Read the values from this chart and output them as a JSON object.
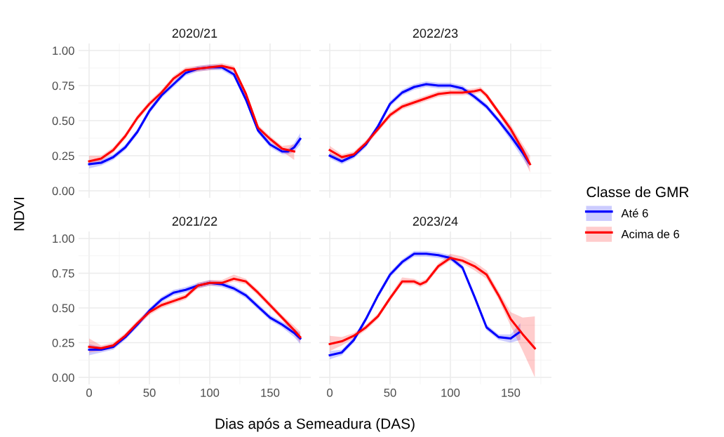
{
  "chart_data": [
    {
      "type": "line",
      "title": "2020/21",
      "ylabel": "NDVI",
      "legend": "right",
      "legend_title": "Classe de GMR",
      "xlim": [
        -8.75,
        183.75
      ],
      "ylim": [
        -0.05,
        1.05
      ],
      "xticks": [
        0,
        50,
        100,
        150
      ],
      "yticks": [
        {
          "value": 0,
          "label": "0.00"
        },
        {
          "value": 0.25,
          "label": "0.25"
        },
        {
          "value": 0.5,
          "label": "0.50"
        },
        {
          "value": 0.75,
          "label": "0.75"
        },
        {
          "value": 1,
          "label": "1.00"
        }
      ],
      "tick_labels": "y",
      "grid": true,
      "series": [
        {
          "name": "Até 6",
          "color": "#0000ff",
          "x": [
            0,
            10,
            20,
            30,
            40,
            50,
            60,
            70,
            80,
            90,
            100,
            110,
            120,
            130,
            140,
            150,
            160,
            165,
            170,
            175
          ],
          "values": [
            0.19,
            0.2,
            0.24,
            0.31,
            0.42,
            0.57,
            0.68,
            0.76,
            0.84,
            0.87,
            0.88,
            0.88,
            0.83,
            0.65,
            0.43,
            0.33,
            0.28,
            0.28,
            0.31,
            0.37
          ],
          "lower": [
            0.16,
            0.18,
            0.22,
            0.29,
            0.4,
            0.55,
            0.66,
            0.74,
            0.82,
            0.85,
            0.86,
            0.86,
            0.81,
            0.63,
            0.41,
            0.31,
            0.26,
            0.26,
            0.28,
            0.33
          ],
          "upper": [
            0.22,
            0.22,
            0.26,
            0.33,
            0.44,
            0.59,
            0.7,
            0.78,
            0.86,
            0.89,
            0.9,
            0.9,
            0.85,
            0.67,
            0.45,
            0.35,
            0.3,
            0.3,
            0.34,
            0.41
          ]
        },
        {
          "name": "Acima de 6",
          "color": "#ff0000",
          "x": [
            0,
            10,
            20,
            30,
            40,
            50,
            60,
            70,
            80,
            90,
            100,
            110,
            120,
            130,
            140,
            150,
            160,
            170
          ],
          "values": [
            0.21,
            0.23,
            0.29,
            0.39,
            0.52,
            0.62,
            0.7,
            0.8,
            0.86,
            0.87,
            0.88,
            0.89,
            0.87,
            0.69,
            0.45,
            0.37,
            0.3,
            0.28
          ],
          "lower": [
            0.18,
            0.21,
            0.27,
            0.37,
            0.5,
            0.6,
            0.68,
            0.78,
            0.84,
            0.85,
            0.86,
            0.87,
            0.85,
            0.67,
            0.43,
            0.35,
            0.28,
            0.22
          ],
          "upper": [
            0.25,
            0.25,
            0.31,
            0.41,
            0.54,
            0.64,
            0.72,
            0.82,
            0.88,
            0.89,
            0.9,
            0.91,
            0.89,
            0.71,
            0.47,
            0.39,
            0.32,
            0.33
          ]
        }
      ]
    },
    {
      "type": "line",
      "title": "2022/23",
      "xlim": [
        -8.75,
        183.75
      ],
      "ylim": [
        -0.05,
        1.05
      ],
      "xticks": [
        0,
        50,
        100,
        150
      ],
      "yticks": [
        0,
        0.25,
        0.5,
        0.75,
        1
      ],
      "tick_labels": false,
      "grid": true,
      "series": [
        {
          "color": "#0000ff",
          "x": [
            0,
            10,
            20,
            30,
            40,
            50,
            60,
            70,
            80,
            90,
            100,
            110,
            120,
            130,
            140,
            150,
            160,
            165
          ],
          "values": [
            0.25,
            0.21,
            0.25,
            0.33,
            0.46,
            0.62,
            0.7,
            0.74,
            0.76,
            0.75,
            0.75,
            0.73,
            0.67,
            0.6,
            0.5,
            0.39,
            0.27,
            0.2
          ],
          "lower": [
            0.23,
            0.19,
            0.23,
            0.31,
            0.44,
            0.6,
            0.68,
            0.72,
            0.74,
            0.73,
            0.73,
            0.71,
            0.65,
            0.58,
            0.48,
            0.36,
            0.23,
            0.16
          ],
          "upper": [
            0.27,
            0.23,
            0.27,
            0.35,
            0.48,
            0.64,
            0.72,
            0.76,
            0.78,
            0.77,
            0.77,
            0.75,
            0.69,
            0.62,
            0.52,
            0.42,
            0.31,
            0.24
          ]
        },
        {
          "color": "#ff0000",
          "x": [
            0,
            10,
            20,
            30,
            40,
            50,
            60,
            70,
            80,
            90,
            100,
            110,
            120,
            125,
            130,
            140,
            150,
            160,
            166
          ],
          "values": [
            0.29,
            0.24,
            0.26,
            0.34,
            0.44,
            0.54,
            0.6,
            0.63,
            0.66,
            0.69,
            0.7,
            0.7,
            0.71,
            0.72,
            0.68,
            0.56,
            0.44,
            0.29,
            0.19
          ],
          "lower": [
            0.26,
            0.22,
            0.24,
            0.32,
            0.42,
            0.52,
            0.58,
            0.61,
            0.64,
            0.67,
            0.68,
            0.68,
            0.69,
            0.7,
            0.66,
            0.54,
            0.41,
            0.25,
            0.13
          ],
          "upper": [
            0.32,
            0.26,
            0.28,
            0.36,
            0.46,
            0.56,
            0.62,
            0.65,
            0.68,
            0.71,
            0.72,
            0.72,
            0.73,
            0.74,
            0.7,
            0.58,
            0.47,
            0.33,
            0.25
          ]
        }
      ]
    },
    {
      "type": "line",
      "title": "2021/22",
      "xlabel": "Dias após a Semeadura (DAS)",
      "xlim": [
        -8.75,
        183.75
      ],
      "ylim": [
        -0.05,
        1.05
      ],
      "xticks": [
        0,
        50,
        100,
        150
      ],
      "yticks": [
        {
          "value": 0,
          "label": "0.00"
        },
        {
          "value": 0.25,
          "label": "0.25"
        },
        {
          "value": 0.5,
          "label": "0.50"
        },
        {
          "value": 0.75,
          "label": "0.75"
        },
        {
          "value": 1,
          "label": "1.00"
        }
      ],
      "grid": true,
      "series": [
        {
          "color": "#0000ff",
          "x": [
            0,
            10,
            20,
            30,
            40,
            50,
            60,
            70,
            80,
            90,
            100,
            110,
            120,
            130,
            140,
            150,
            160,
            170,
            175
          ],
          "values": [
            0.2,
            0.2,
            0.22,
            0.29,
            0.38,
            0.48,
            0.56,
            0.61,
            0.63,
            0.66,
            0.68,
            0.67,
            0.64,
            0.59,
            0.51,
            0.43,
            0.38,
            0.32,
            0.28
          ],
          "lower": [
            0.16,
            0.18,
            0.2,
            0.27,
            0.36,
            0.46,
            0.54,
            0.59,
            0.61,
            0.64,
            0.66,
            0.65,
            0.62,
            0.57,
            0.49,
            0.41,
            0.36,
            0.29,
            0.24
          ],
          "upper": [
            0.24,
            0.22,
            0.24,
            0.31,
            0.4,
            0.5,
            0.58,
            0.63,
            0.65,
            0.68,
            0.7,
            0.69,
            0.66,
            0.61,
            0.53,
            0.45,
            0.4,
            0.35,
            0.32
          ]
        },
        {
          "color": "#ff0000",
          "x": [
            0,
            10,
            20,
            30,
            40,
            50,
            60,
            70,
            80,
            90,
            100,
            110,
            120,
            130,
            140,
            150,
            160,
            170,
            175
          ],
          "values": [
            0.22,
            0.21,
            0.23,
            0.3,
            0.39,
            0.47,
            0.52,
            0.55,
            0.58,
            0.66,
            0.68,
            0.68,
            0.71,
            0.69,
            0.61,
            0.52,
            0.43,
            0.34,
            0.29
          ],
          "lower": [
            0.18,
            0.19,
            0.21,
            0.28,
            0.37,
            0.45,
            0.5,
            0.53,
            0.56,
            0.64,
            0.66,
            0.66,
            0.69,
            0.67,
            0.59,
            0.5,
            0.41,
            0.31,
            0.25
          ],
          "upper": [
            0.28,
            0.23,
            0.25,
            0.32,
            0.41,
            0.49,
            0.54,
            0.57,
            0.6,
            0.68,
            0.7,
            0.7,
            0.74,
            0.71,
            0.63,
            0.54,
            0.45,
            0.37,
            0.33
          ]
        }
      ]
    },
    {
      "type": "line",
      "title": "2023/24",
      "xlim": [
        -8.75,
        183.75
      ],
      "ylim": [
        -0.05,
        1.05
      ],
      "xticks": [
        0,
        50,
        100,
        150
      ],
      "yticks": [
        0,
        0.25,
        0.5,
        0.75,
        1
      ],
      "tick_labels": "x",
      "grid": true,
      "series": [
        {
          "color": "#0000ff",
          "x": [
            0,
            10,
            20,
            30,
            40,
            50,
            60,
            70,
            80,
            90,
            100,
            110,
            120,
            130,
            140,
            150,
            158
          ],
          "values": [
            0.16,
            0.18,
            0.27,
            0.42,
            0.59,
            0.74,
            0.83,
            0.89,
            0.89,
            0.88,
            0.86,
            0.79,
            0.58,
            0.36,
            0.29,
            0.28,
            0.33
          ],
          "lower": [
            0.13,
            0.16,
            0.25,
            0.4,
            0.57,
            0.72,
            0.81,
            0.87,
            0.87,
            0.86,
            0.84,
            0.77,
            0.56,
            0.34,
            0.27,
            0.25,
            0.27
          ],
          "upper": [
            0.19,
            0.2,
            0.29,
            0.44,
            0.61,
            0.76,
            0.85,
            0.91,
            0.91,
            0.9,
            0.88,
            0.81,
            0.6,
            0.38,
            0.31,
            0.31,
            0.39
          ]
        },
        {
          "color": "#ff0000",
          "x": [
            0,
            10,
            20,
            30,
            40,
            50,
            60,
            70,
            75,
            80,
            90,
            100,
            110,
            120,
            130,
            140,
            150,
            160,
            170
          ],
          "values": [
            0.24,
            0.26,
            0.3,
            0.36,
            0.44,
            0.57,
            0.69,
            0.69,
            0.67,
            0.69,
            0.8,
            0.86,
            0.84,
            0.8,
            0.74,
            0.59,
            0.42,
            0.31,
            0.21
          ],
          "lower": [
            0.19,
            0.23,
            0.28,
            0.34,
            0.42,
            0.55,
            0.67,
            0.67,
            0.65,
            0.67,
            0.78,
            0.84,
            0.82,
            0.77,
            0.71,
            0.56,
            0.37,
            0.19,
            0.0
          ],
          "upper": [
            0.3,
            0.29,
            0.32,
            0.38,
            0.46,
            0.59,
            0.72,
            0.71,
            0.69,
            0.71,
            0.82,
            0.89,
            0.87,
            0.83,
            0.77,
            0.62,
            0.47,
            0.43,
            0.44
          ]
        }
      ]
    }
  ]
}
